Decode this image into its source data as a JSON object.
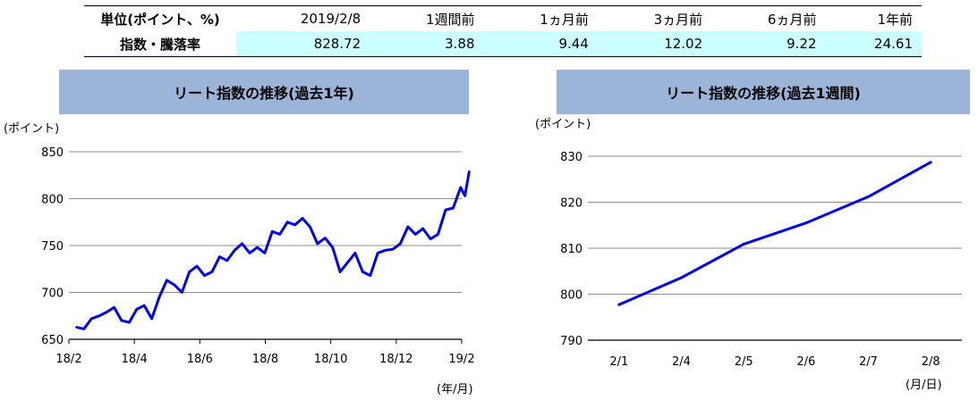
{
  "table": {
    "headers": [
      "単位(ポイント、%)",
      "2019/2/8",
      "1週間前",
      "1ヵ月前",
      "3ヵ月前",
      "6ヵ月前",
      "1年前"
    ],
    "row": [
      "指数・騰落率",
      "828.72",
      "3.88",
      "9.44",
      "12.02",
      "9.22",
      "24.61"
    ]
  },
  "chart_data": [
    {
      "type": "line",
      "title": "リート指数の推移(過去1年)",
      "ylabel": "(ポイント)",
      "xlabel": "(年/月)",
      "ylim": [
        650,
        850
      ],
      "yticks": [
        "650",
        "700",
        "750",
        "800",
        "850"
      ],
      "xticks": [
        "18/2",
        "18/4",
        "18/6",
        "18/8",
        "18/10",
        "18/12",
        "19/2"
      ],
      "grid": true,
      "color": "#0000ff",
      "series": [
        {
          "x": [
            "2018-02-08",
            "2018-02-15",
            "2018-02-22",
            "2018-03-01",
            "2018-03-08",
            "2018-03-15",
            "2018-03-22",
            "2018-03-29",
            "2018-04-05",
            "2018-04-12",
            "2018-04-19",
            "2018-04-26",
            "2018-05-03",
            "2018-05-10",
            "2018-05-17",
            "2018-05-24",
            "2018-05-31",
            "2018-06-07",
            "2018-06-14",
            "2018-06-21",
            "2018-06-28",
            "2018-07-05",
            "2018-07-12",
            "2018-07-19",
            "2018-07-26",
            "2018-08-02",
            "2018-08-09",
            "2018-08-16",
            "2018-08-23",
            "2018-08-30",
            "2018-09-06",
            "2018-09-13",
            "2018-09-20",
            "2018-09-27",
            "2018-10-04",
            "2018-10-11",
            "2018-10-18",
            "2018-10-25",
            "2018-11-01",
            "2018-11-08",
            "2018-11-15",
            "2018-11-22",
            "2018-11-29",
            "2018-12-06",
            "2018-12-13",
            "2018-12-20",
            "2018-12-27",
            "2019-01-03",
            "2019-01-10",
            "2019-01-17",
            "2019-01-24",
            "2019-01-31",
            "2019-02-04",
            "2019-02-08"
          ],
          "values": [
            663,
            661,
            672,
            675,
            679,
            684,
            670,
            668,
            682,
            686,
            672,
            695,
            713,
            708,
            700,
            722,
            728,
            718,
            722,
            738,
            734,
            745,
            752,
            742,
            748,
            742,
            765,
            762,
            775,
            772,
            779,
            770,
            752,
            758,
            748,
            722,
            732,
            742,
            722,
            718,
            742,
            745,
            746,
            752,
            770,
            762,
            768,
            757,
            762,
            788,
            790,
            812,
            803,
            829
          ]
        }
      ]
    },
    {
      "type": "line",
      "title": "リート指数の推移(過去1週間)",
      "ylabel": "(ポイント)",
      "xlabel": "(月/日)",
      "ylim": [
        790,
        830
      ],
      "yticks": [
        "790",
        "800",
        "810",
        "820",
        "830"
      ],
      "categories": [
        "2/1",
        "2/4",
        "2/5",
        "2/6",
        "2/7",
        "2/8"
      ],
      "grid": true,
      "color": "#0000ff",
      "series": [
        {
          "values": [
            797.7,
            803.6,
            810.9,
            815.5,
            821.2,
            828.7
          ]
        }
      ]
    }
  ]
}
